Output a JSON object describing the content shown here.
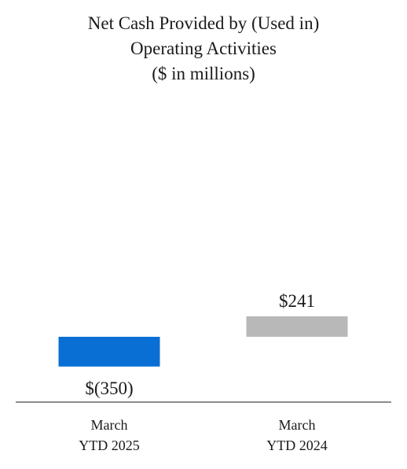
{
  "chart_data": {
    "type": "bar",
    "title_lines": [
      "Net Cash Provided by (Used in)",
      "Operating Activities",
      "($ in millions)"
    ],
    "categories": [
      {
        "line1": "March",
        "line2": "YTD 2025"
      },
      {
        "line1": "March",
        "line2": "YTD 2024"
      }
    ],
    "values": [
      -350,
      241
    ],
    "value_labels": [
      "$(350)",
      "$241"
    ],
    "colors": [
      "#0a6fd4",
      "#b8b8b8"
    ],
    "baseline_color": "#8c8c8c",
    "xlabel": "",
    "ylabel": "",
    "grid": false,
    "legend": "none"
  }
}
